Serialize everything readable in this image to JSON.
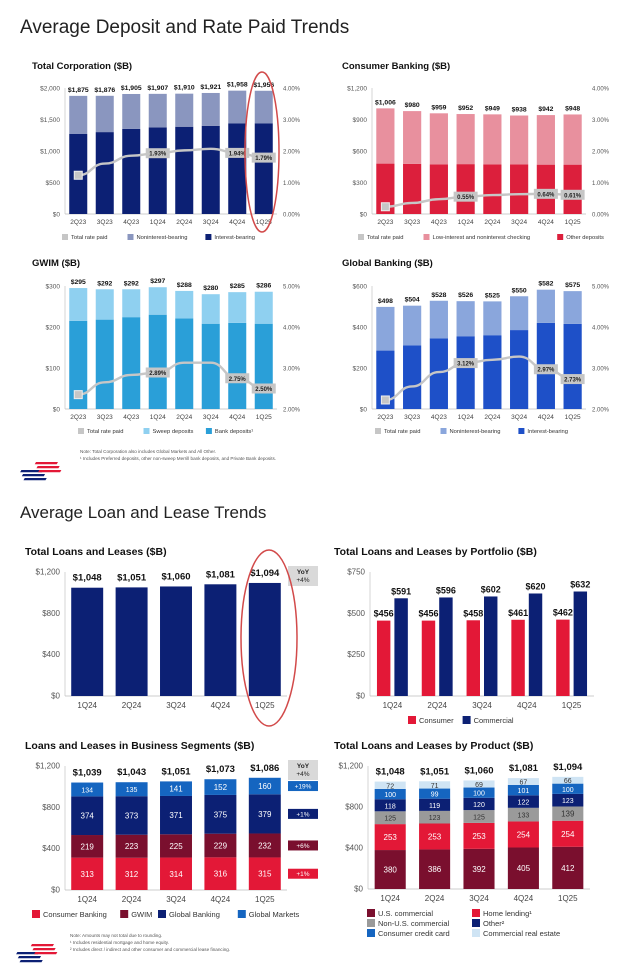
{
  "sections": {
    "deposits_title": "Average Deposit and Rate Paid Trends",
    "loans_title": "Average Loan and Lease Trends"
  },
  "notes": {
    "deposits": [
      "Note: Total Corporation also includes Global Markets and All Other.",
      "¹ Includes Preferred deposits, other non-sweep Merrill bank deposits, and Private Bank deposits."
    ],
    "loans": [
      "Note: Amounts may not total due to rounding.",
      "¹ Includes residential mortgage and home equity.",
      "² Includes direct / indirect and other consumer and commercial lease financing."
    ]
  },
  "colors": {
    "rate_line": "#c6c6c6",
    "highlight_ellipse": "#d24a4a",
    "brand_red": "#e31837",
    "brand_navy": "#0c2074"
  },
  "chart_data": [
    {
      "id": "total-corporation",
      "type": "bar",
      "stacked": true,
      "title": "Total Corporation ($B)",
      "categories": [
        "2Q23",
        "3Q23",
        "4Q23",
        "1Q24",
        "2Q24",
        "3Q24",
        "4Q24",
        "1Q25"
      ],
      "ylim": [
        0,
        2000
      ],
      "y_ticks": [
        0,
        500,
        1000,
        1500,
        2000
      ],
      "y_tick_labels": [
        "$0",
        "$500",
        "$1,000",
        "$1,500",
        "$2,000"
      ],
      "y2lim": [
        0,
        4
      ],
      "y2_ticks": [
        0,
        1,
        2,
        3,
        4
      ],
      "y2_tick_labels": [
        "0.00%",
        "1.00%",
        "2.00%",
        "3.00%",
        "4.00%"
      ],
      "series": [
        {
          "name": "Interest-bearing",
          "color": "#0c2074",
          "values": [
            1270,
            1300,
            1350,
            1375,
            1385,
            1400,
            1440,
            1440
          ]
        },
        {
          "name": "Noninterest-bearing",
          "color": "#8a96bf",
          "values": [
            605,
            576,
            555,
            532,
            525,
            521,
            518,
            516
          ]
        }
      ],
      "totals": [
        "$1,875",
        "$1,876",
        "$1,905",
        "$1,907",
        "$1,910",
        "$1,921",
        "$1,958",
        "$1,956"
      ],
      "rate": {
        "name": "Total rate paid",
        "values": [
          1.23,
          1.6,
          1.85,
          1.93,
          2.02,
          2.07,
          1.94,
          1.79
        ],
        "labels": [
          "",
          "",
          "",
          "1.93%",
          "",
          "",
          "1.94%",
          "1.79%"
        ]
      },
      "legend": [
        "Total rate paid",
        "Noninterest-bearing",
        "Interest-bearing"
      ]
    },
    {
      "id": "consumer-banking",
      "type": "bar",
      "stacked": true,
      "title": "Consumer Banking ($B)",
      "categories": [
        "2Q23",
        "3Q23",
        "4Q23",
        "1Q24",
        "2Q24",
        "3Q24",
        "4Q24",
        "1Q25"
      ],
      "ylim": [
        0,
        1200
      ],
      "y_ticks": [
        0,
        300,
        600,
        900,
        1200
      ],
      "y_tick_labels": [
        "$0",
        "$300",
        "$600",
        "$900",
        "$1,200"
      ],
      "y2lim": [
        0,
        4
      ],
      "y2_ticks": [
        0,
        1,
        2,
        3,
        4
      ],
      "y2_tick_labels": [
        "0.00%",
        "1.00%",
        "2.00%",
        "3.00%",
        "4.00%"
      ],
      "series": [
        {
          "name": "Other deposits",
          "color": "#dc1f3c",
          "values": [
            480,
            478,
            472,
            475,
            472,
            472,
            470,
            470
          ]
        },
        {
          "name": "Low-interest and noninterest checking",
          "color": "#e8909e",
          "values": [
            526,
            502,
            487,
            477,
            477,
            466,
            472,
            478
          ]
        }
      ],
      "totals": [
        "$1,006",
        "$980",
        "$959",
        "$952",
        "$949",
        "$938",
        "$942",
        "$948"
      ],
      "rate": {
        "name": "Total rate paid",
        "values": [
          0.23,
          0.35,
          0.47,
          0.55,
          0.6,
          0.63,
          0.64,
          0.61
        ],
        "labels": [
          "",
          "",
          "",
          "0.55%",
          "",
          "",
          "0.64%",
          "0.61%"
        ]
      },
      "legend": [
        "Total rate paid",
        "Low-interest and noninterest checking",
        "Other deposits"
      ]
    },
    {
      "id": "gwim",
      "type": "bar",
      "stacked": true,
      "title": "GWIM ($B)",
      "categories": [
        "2Q23",
        "3Q23",
        "4Q23",
        "1Q24",
        "2Q24",
        "3Q24",
        "4Q24",
        "1Q25"
      ],
      "ylim": [
        0,
        300
      ],
      "y_ticks": [
        0,
        100,
        200,
        300
      ],
      "y_tick_labels": [
        "$0",
        "$100",
        "$200",
        "$300"
      ],
      "y2lim": [
        2,
        5
      ],
      "y2_ticks": [
        2,
        3,
        4,
        5
      ],
      "y2_tick_labels": [
        "2.00%",
        "3.00%",
        "4.00%",
        "5.00%"
      ],
      "series": [
        {
          "name": "Bank deposits¹",
          "color": "#2a9fd8",
          "values": [
            215,
            218,
            224,
            230,
            221,
            208,
            210,
            208
          ]
        },
        {
          "name": "Sweep deposits",
          "color": "#8fd0f0",
          "values": [
            80,
            74,
            68,
            67,
            67,
            72,
            75,
            78
          ]
        }
      ],
      "totals": [
        "$295",
        "$292",
        "$292",
        "$297",
        "$288",
        "$280",
        "$285",
        "$286"
      ],
      "rate": {
        "name": "Total rate paid",
        "values": [
          2.35,
          2.65,
          2.83,
          2.89,
          3.13,
          3.13,
          2.75,
          2.5
        ],
        "labels": [
          "",
          "",
          "",
          "2.89%",
          "",
          "",
          "2.75%",
          "2.50%"
        ]
      },
      "legend": [
        "Total rate paid",
        "Sweep deposits",
        "Bank deposits¹"
      ]
    },
    {
      "id": "global-banking",
      "type": "bar",
      "stacked": true,
      "title": "Global Banking ($B)",
      "categories": [
        "2Q23",
        "3Q23",
        "4Q23",
        "1Q24",
        "2Q24",
        "3Q24",
        "4Q24",
        "1Q25"
      ],
      "ylim": [
        0,
        600
      ],
      "y_ticks": [
        0,
        200,
        400,
        600
      ],
      "y_tick_labels": [
        "$0",
        "$200",
        "$400",
        "$600"
      ],
      "y2lim": [
        2,
        5
      ],
      "y2_ticks": [
        2,
        3,
        4,
        5
      ],
      "y2_tick_labels": [
        "2.00%",
        "3.00%",
        "4.00%",
        "5.00%"
      ],
      "series": [
        {
          "name": "Interest-bearing",
          "color": "#1e50c8",
          "values": [
            285,
            310,
            345,
            355,
            360,
            385,
            420,
            415
          ]
        },
        {
          "name": "Noninterest-bearing",
          "color": "#8aa6dc",
          "values": [
            213,
            194,
            183,
            171,
            165,
            165,
            162,
            160
          ]
        }
      ],
      "totals": [
        "$498",
        "$504",
        "$528",
        "$526",
        "$525",
        "$550",
        "$582",
        "$575"
      ],
      "rate": {
        "name": "Total rate paid",
        "values": [
          2.22,
          2.55,
          2.9,
          3.12,
          3.2,
          3.28,
          2.97,
          2.73
        ],
        "labels": [
          "",
          "",
          "",
          "3.12%",
          "",
          "",
          "2.97%",
          "2.73%"
        ]
      },
      "legend": [
        "Total rate paid",
        "Noninterest-bearing",
        "Interest-bearing"
      ]
    },
    {
      "id": "total-loans",
      "type": "bar",
      "stacked": true,
      "title": "Total Loans and Leases ($B)",
      "categories": [
        "1Q24",
        "2Q24",
        "3Q24",
        "4Q24",
        "1Q25"
      ],
      "ylim": [
        0,
        1200
      ],
      "y_ticks": [
        0,
        400,
        800,
        1200
      ],
      "y_tick_labels": [
        "$0",
        "$400",
        "$800",
        "$1,200"
      ],
      "series": [
        {
          "name": "Total loans and leases",
          "color": "#0c2074",
          "values": [
            1048,
            1051,
            1060,
            1081,
            1094
          ]
        }
      ],
      "totals": [
        "$1,048",
        "$1,051",
        "$1,060",
        "$1,081",
        "$1,094"
      ],
      "yoy": {
        "header": "YoY",
        "total": "+4%"
      }
    },
    {
      "id": "loans-by-portfolio",
      "type": "bar",
      "stacked": false,
      "title": "Total Loans and Leases by Portfolio ($B)",
      "categories": [
        "1Q24",
        "2Q24",
        "3Q24",
        "4Q24",
        "1Q25"
      ],
      "ylim": [
        0,
        750
      ],
      "y_ticks": [
        0,
        250,
        500,
        750
      ],
      "y_tick_labels": [
        "$0",
        "$250",
        "$500",
        "$750"
      ],
      "series": [
        {
          "name": "Consumer",
          "color": "#e31837",
          "values": [
            456,
            456,
            458,
            461,
            462
          ],
          "labels": [
            "$456",
            "$456",
            "$458",
            "$461",
            "$462"
          ]
        },
        {
          "name": "Commercial",
          "color": "#0c2074",
          "values": [
            591,
            596,
            602,
            620,
            632
          ],
          "labels": [
            "$591",
            "$596",
            "$602",
            "$620",
            "$632"
          ]
        }
      ],
      "legend": [
        "Consumer",
        "Commercial"
      ]
    },
    {
      "id": "loans-by-segment",
      "type": "bar",
      "stacked": true,
      "title": "Loans and Leases in Business Segments ($B)",
      "categories": [
        "1Q24",
        "2Q24",
        "3Q24",
        "4Q24",
        "1Q25"
      ],
      "ylim": [
        0,
        1200
      ],
      "y_ticks": [
        0,
        400,
        800,
        1200
      ],
      "y_tick_labels": [
        "$0",
        "$400",
        "$800",
        "$1,200"
      ],
      "series": [
        {
          "name": "Consumer Banking",
          "color": "#e31837",
          "values": [
            313,
            312,
            314,
            316,
            315
          ],
          "yoy": "+1%"
        },
        {
          "name": "GWIM",
          "color": "#7a0f2e",
          "values": [
            219,
            223,
            225,
            229,
            232
          ],
          "yoy": "+6%"
        },
        {
          "name": "Global Banking",
          "color": "#0c2074",
          "values": [
            374,
            373,
            371,
            375,
            379
          ],
          "yoy": "+1%"
        },
        {
          "name": "Global Markets",
          "color": "#1565c0",
          "values": [
            134,
            135,
            141,
            152,
            160
          ],
          "yoy": "+19%"
        }
      ],
      "totals": [
        "$1,039",
        "$1,043",
        "$1,051",
        "$1,073",
        "$1,086"
      ],
      "yoy": {
        "header": "YoY",
        "total": "+4%"
      },
      "legend": [
        "Consumer Banking",
        "GWIM",
        "Global Banking",
        "Global Markets"
      ]
    },
    {
      "id": "loans-by-product",
      "type": "bar",
      "stacked": true,
      "title": "Total Loans and Leases by Product ($B)",
      "categories": [
        "1Q24",
        "2Q24",
        "3Q24",
        "4Q24",
        "1Q25"
      ],
      "ylim": [
        0,
        1200
      ],
      "y_ticks": [
        0,
        400,
        800,
        1200
      ],
      "y_tick_labels": [
        "$0",
        "$400",
        "$800",
        "$1,200"
      ],
      "series": [
        {
          "name": "U.S. commercial",
          "color": "#7a0f2e",
          "values": [
            380,
            386,
            392,
            405,
            412
          ]
        },
        {
          "name": "Home lending¹",
          "color": "#e31837",
          "values": [
            253,
            253,
            253,
            254,
            254
          ]
        },
        {
          "name": "Non-U.S. commercial",
          "color": "#9a9a9a",
          "values": [
            125,
            123,
            125,
            133,
            139
          ]
        },
        {
          "name": "Other²",
          "color": "#0c2074",
          "values": [
            118,
            119,
            120,
            122,
            123
          ]
        },
        {
          "name": "Consumer credit card",
          "color": "#1565c0",
          "values": [
            100,
            99,
            100,
            101,
            100
          ]
        },
        {
          "name": "Commercial real estate",
          "color": "#cfe4f4",
          "values": [
            72,
            71,
            69,
            67,
            66
          ]
        }
      ],
      "totals": [
        "$1,048",
        "$1,051",
        "$1,060",
        "$1,081",
        "$1,094"
      ],
      "legend": [
        "U.S. commercial",
        "Home lending¹",
        "Non-U.S. commercial",
        "Other²",
        "Consumer credit card",
        "Commercial real estate"
      ]
    }
  ]
}
